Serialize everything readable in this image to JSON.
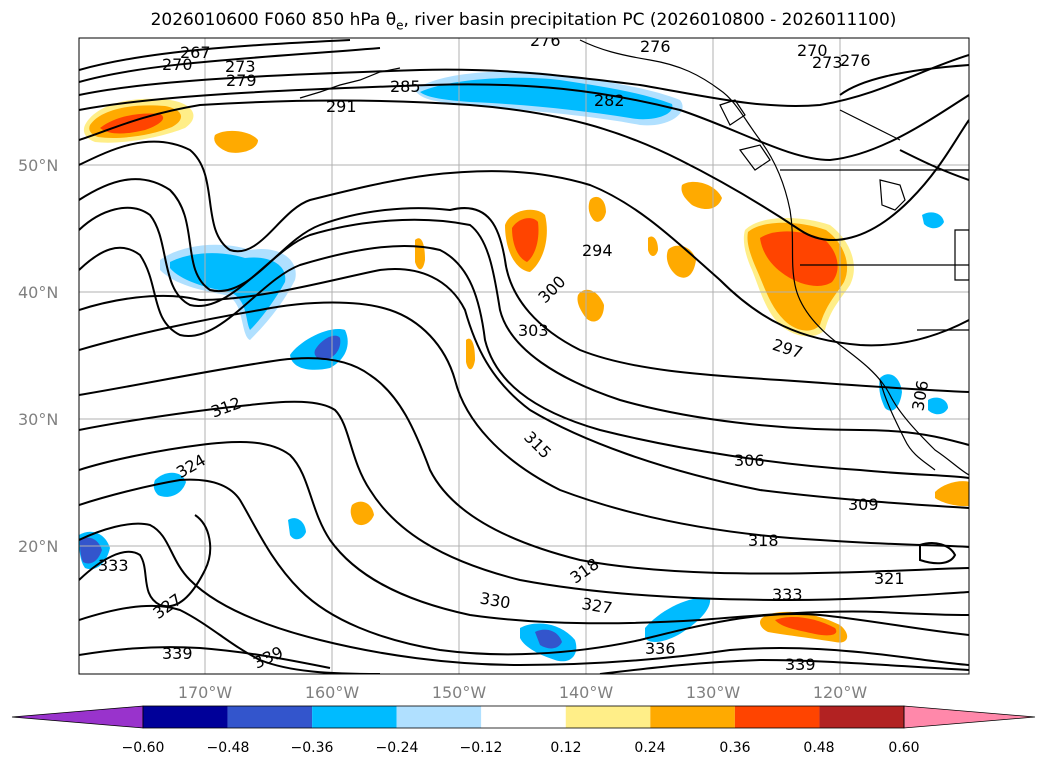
{
  "title_text": "2026010600 F060 850 hPa θ",
  "title_sub": "e",
  "title_rest": ", river basin precipitation PC (2026010800 - 2026011100)",
  "lat_labels": [
    {
      "text": "50°N",
      "lat": 50
    },
    {
      "text": "40°N",
      "lat": 40
    },
    {
      "text": "30°N",
      "lat": 30
    },
    {
      "text": "20°N",
      "lat": 20
    }
  ],
  "lon_labels": [
    {
      "text": "170°W",
      "lon": -170
    },
    {
      "text": "160°W",
      "lon": -160
    },
    {
      "text": "150°W",
      "lon": -150
    },
    {
      "text": "140°W",
      "lon": -140
    },
    {
      "text": "130°W",
      "lon": -130
    },
    {
      "text": "120°W",
      "lon": -120
    }
  ],
  "contour_labels": [
    "267",
    "270",
    "273",
    "279",
    "285",
    "291",
    "282",
    "270",
    "273",
    "276",
    "294",
    "300",
    "303",
    "297",
    "306",
    "312",
    "315",
    "324",
    "306",
    "309",
    "318",
    "321",
    "318",
    "333",
    "327",
    "330",
    "327",
    "333",
    "336",
    "339",
    "339",
    "339",
    "276",
    "276"
  ],
  "colorbar": {
    "ticks": [
      "−0.60",
      "−0.48",
      "−0.36",
      "−0.24",
      "−0.12",
      "0.12",
      "0.24",
      "0.36",
      "0.48",
      "0.60"
    ],
    "colors": [
      "#9933cc",
      "#000099",
      "#3355cc",
      "#00bbff",
      "#b0e0ff",
      "#ffffff",
      "#ffee88",
      "#ffaa00",
      "#ff4400",
      "#b22222",
      "#ff88aa"
    ]
  }
}
